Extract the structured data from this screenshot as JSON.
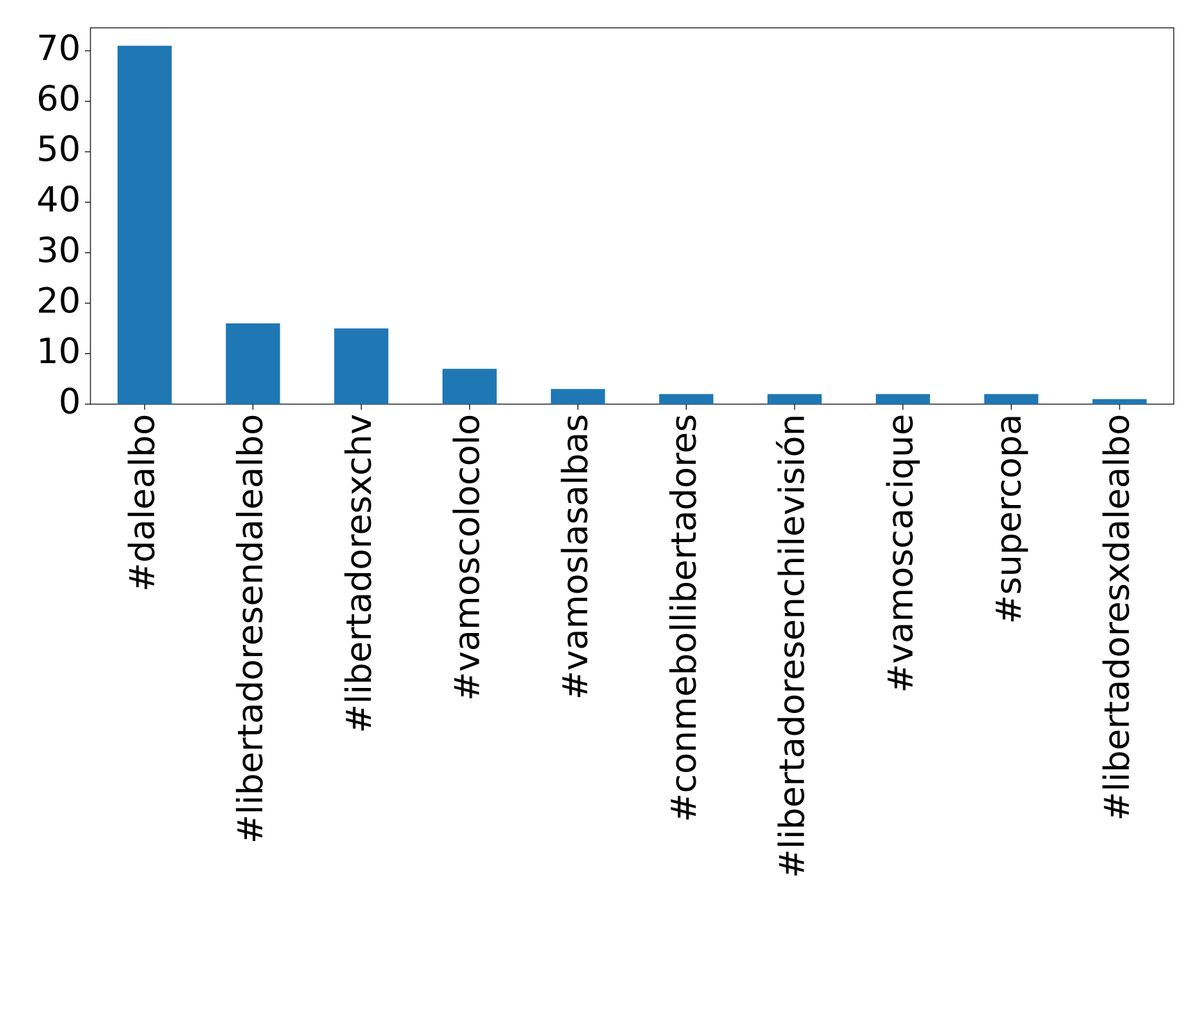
{
  "chart_data": {
    "type": "bar",
    "categories": [
      "#dalealbo",
      "#libertadoresendalealbo",
      "#libertadoresxchv",
      "#vamoscolocolo",
      "#vamoslasalbas",
      "#conmebollibertadores",
      "#libertadoresenchilevisión",
      "#vamoscacique",
      "#supercopa",
      "#libertadoresxdalealbo"
    ],
    "values": [
      71,
      16,
      15,
      7,
      3,
      2,
      2,
      2,
      2,
      1
    ],
    "color": "#1f77b4",
    "ylim": [
      0,
      74.55
    ],
    "yticks": [
      0,
      10,
      20,
      30,
      40,
      50,
      60,
      70
    ],
    "grid": false
  }
}
